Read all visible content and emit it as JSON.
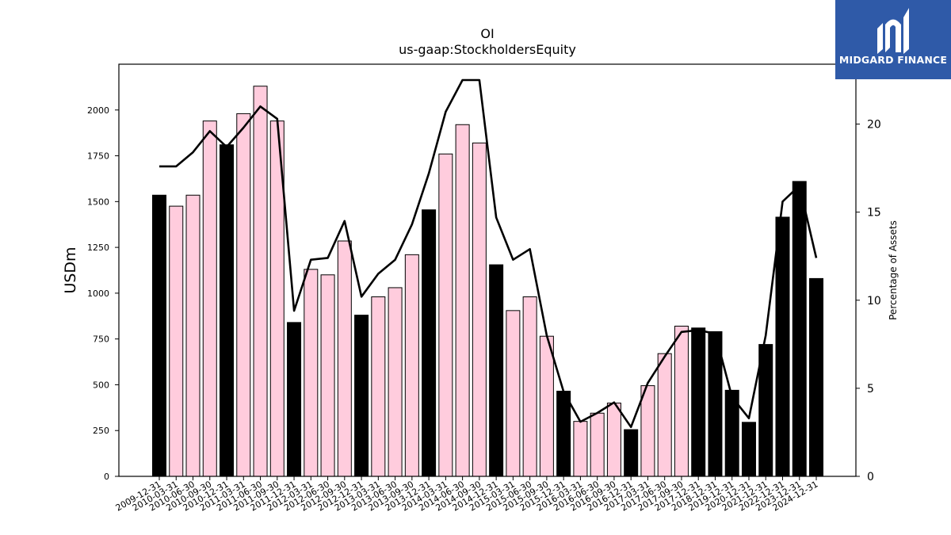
{
  "logo": {
    "text": "MIDGARD FINANCE"
  },
  "colors": {
    "annual_bar": "#000000",
    "quarter_bar": "#ffccdd",
    "line": "#000000",
    "logo_bg": "#2f5aa8"
  },
  "chart_data": {
    "type": "bar",
    "title": "OI",
    "subtitle": "us-gaap:StockholdersEquity",
    "ylabel": "USDm",
    "y2label": "Percentage of Assets",
    "ylim": [
      0,
      2250
    ],
    "y2lim": [
      0,
      23.4
    ],
    "yticks": [
      0,
      250,
      500,
      750,
      1000,
      1250,
      1500,
      1750,
      2000
    ],
    "y2ticks": [
      0,
      5,
      10,
      15,
      20
    ],
    "categories": [
      "2009-12-31",
      "2010-03-31",
      "2010-06-30",
      "2010-09-30",
      "2010-12-31",
      "2011-03-31",
      "2011-06-30",
      "2011-09-30",
      "2011-12-31",
      "2012-03-31",
      "2012-06-30",
      "2012-09-30",
      "2012-12-31",
      "2013-03-31",
      "2013-06-30",
      "2013-09-30",
      "2013-12-31",
      "2014-03-31",
      "2014-06-30",
      "2014-09-30",
      "2014-12-31",
      "2015-03-31",
      "2015-06-30",
      "2015-09-30",
      "2015-12-31",
      "2016-03-31",
      "2016-06-30",
      "2016-09-30",
      "2016-12-31",
      "2017-03-31",
      "2017-06-30",
      "2017-09-30",
      "2017-12-31",
      "2018-12-31",
      "2019-12-31",
      "2020-12-31",
      "2021-12-31",
      "2022-12-31",
      "2023-12-31",
      "2024-12-31"
    ],
    "series": [
      {
        "type": "bar",
        "values": [
          1535,
          1475,
          1535,
          1940,
          1810,
          1980,
          2130,
          1940,
          840,
          1130,
          1100,
          1285,
          880,
          980,
          1030,
          1210,
          1455,
          1760,
          1920,
          1820,
          1155,
          905,
          980,
          765,
          465,
          300,
          345,
          400,
          255,
          495,
          670,
          820,
          810,
          790,
          470,
          295,
          720,
          1415,
          1610,
          1080
        ],
        "annual": [
          true,
          false,
          false,
          false,
          true,
          false,
          false,
          false,
          true,
          false,
          false,
          false,
          true,
          false,
          false,
          false,
          true,
          false,
          false,
          false,
          true,
          false,
          false,
          false,
          true,
          false,
          false,
          false,
          true,
          false,
          false,
          false,
          true,
          true,
          true,
          true,
          true,
          true,
          true,
          true
        ]
      },
      {
        "type": "line",
        "axis": "right",
        "values": [
          17.6,
          17.6,
          18.4,
          19.6,
          18.7,
          19.8,
          21.0,
          20.3,
          9.4,
          12.3,
          12.4,
          14.5,
          10.2,
          11.5,
          12.3,
          14.3,
          17.2,
          20.7,
          22.5,
          22.5,
          14.7,
          12.3,
          12.9,
          8.0,
          4.8,
          3.1,
          3.6,
          4.2,
          2.8,
          5.3,
          6.8,
          8.2,
          8.3,
          8.1,
          4.5,
          3.3,
          8.0,
          15.6,
          16.5,
          12.4
        ]
      }
    ]
  }
}
